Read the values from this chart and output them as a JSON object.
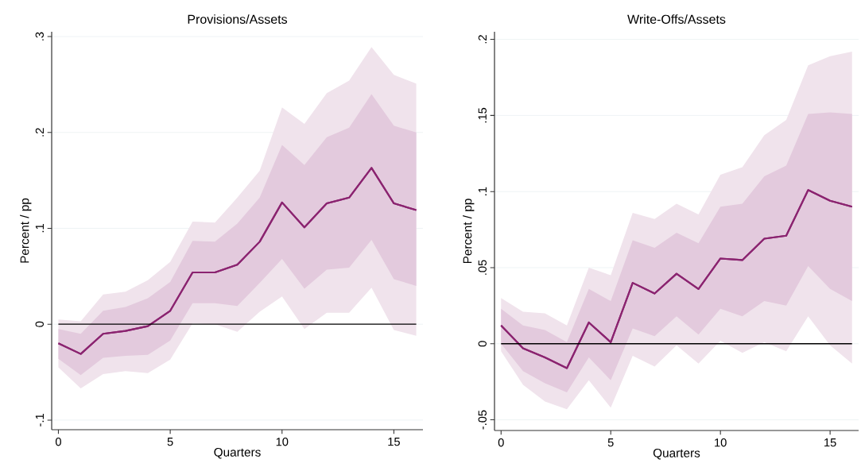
{
  "chart_data": [
    {
      "type": "line",
      "title": "Provisions/Assets",
      "xlabel": "Quarters",
      "ylabel": "Percent / pp",
      "x": [
        0,
        1,
        2,
        3,
        4,
        5,
        6,
        7,
        8,
        9,
        10,
        11,
        12,
        13,
        14,
        15,
        16
      ],
      "series": [
        {
          "color": "#8b2470",
          "values": [
            -0.02,
            -0.031,
            -0.01,
            -0.007,
            -0.002,
            0.014,
            0.054,
            0.054,
            0.062,
            0.086,
            0.127,
            0.101,
            0.126,
            0.132,
            0.163,
            0.126,
            0.119
          ],
          "lower": [
            -0.045,
            -0.067,
            -0.052,
            -0.049,
            -0.051,
            -0.037,
            0.001,
            0.0,
            -0.008,
            0.013,
            0.029,
            -0.005,
            0.012,
            0.012,
            0.038,
            -0.006,
            -0.012
          ],
          "upper": [
            0.005,
            0.003,
            0.031,
            0.034,
            0.046,
            0.065,
            0.107,
            0.106,
            0.132,
            0.16,
            0.226,
            0.209,
            0.241,
            0.254,
            0.289,
            0.26,
            0.251
          ]
        },
        {
          "color": "#8b2470",
          "values": [
            -0.02,
            -0.031,
            -0.01,
            -0.007,
            -0.002,
            0.014,
            0.054,
            0.054,
            0.062,
            0.086,
            0.127,
            0.101,
            0.126,
            0.132,
            0.163,
            0.126,
            0.119
          ],
          "lower": [
            -0.036,
            -0.053,
            -0.035,
            -0.033,
            -0.032,
            -0.017,
            0.022,
            0.022,
            0.019,
            0.043,
            0.068,
            0.037,
            0.057,
            0.059,
            0.088,
            0.047,
            0.04
          ],
          "upper": [
            -0.005,
            -0.01,
            0.014,
            0.018,
            0.027,
            0.044,
            0.087,
            0.086,
            0.105,
            0.132,
            0.187,
            0.166,
            0.195,
            0.205,
            0.24,
            0.207,
            0.2
          ]
        }
      ],
      "xlim": [
        -0.3,
        16.3
      ],
      "ylim": [
        -0.11,
        0.305
      ],
      "xticks": [
        0,
        5,
        10,
        15
      ],
      "yticks": [
        {
          "value": -0.1,
          "label": "-.1"
        },
        0,
        {
          "value": 0.1,
          "label": ".1"
        },
        {
          "value": 0.2,
          "label": ".2"
        },
        {
          "value": 0.3,
          "label": ".3"
        }
      ],
      "grid": "y",
      "ref_lines": [
        {
          "axis": "y",
          "value": 0,
          "color": "#000000"
        }
      ]
    },
    {
      "type": "line",
      "title": "Write-Offs/Assets",
      "xlabel": "Quarters",
      "ylabel": "Percent / pp",
      "x": [
        0,
        1,
        2,
        3,
        4,
        5,
        6,
        7,
        8,
        9,
        10,
        11,
        12,
        13,
        14,
        15,
        16
      ],
      "series": [
        {
          "color": "#8b2470",
          "values": [
            0.012,
            -0.003,
            -0.009,
            -0.016,
            0.014,
            0.001,
            0.04,
            0.033,
            0.046,
            0.036,
            0.056,
            0.055,
            0.069,
            0.071,
            0.101,
            0.094,
            0.09
          ],
          "lower": [
            -0.005,
            -0.027,
            -0.038,
            -0.043,
            -0.024,
            -0.042,
            -0.008,
            -0.015,
            -0.001,
            -0.013,
            0.002,
            -0.006,
            0.001,
            -0.005,
            0.018,
            -0.001,
            -0.013
          ],
          "upper": [
            0.03,
            0.021,
            0.02,
            0.012,
            0.05,
            0.045,
            0.086,
            0.082,
            0.092,
            0.085,
            0.111,
            0.116,
            0.137,
            0.147,
            0.183,
            0.189,
            0.192
          ]
        },
        {
          "color": "#8b2470",
          "values": [
            0.012,
            -0.003,
            -0.009,
            -0.016,
            0.014,
            0.001,
            0.04,
            0.033,
            0.046,
            0.036,
            0.056,
            0.055,
            0.069,
            0.071,
            0.101,
            0.094,
            0.09
          ],
          "lower": [
            0.0,
            -0.018,
            -0.026,
            -0.032,
            -0.009,
            -0.024,
            0.01,
            0.005,
            0.018,
            0.006,
            0.023,
            0.018,
            0.028,
            0.025,
            0.051,
            0.036,
            0.028
          ],
          "upper": [
            0.023,
            0.012,
            0.009,
            0.001,
            0.036,
            0.028,
            0.068,
            0.063,
            0.073,
            0.066,
            0.09,
            0.092,
            0.11,
            0.117,
            0.151,
            0.152,
            0.151
          ]
        }
      ],
      "xlim": [
        -0.3,
        16.3
      ],
      "ylim": [
        -0.057,
        0.205
      ],
      "xticks": [
        0,
        5,
        10,
        15
      ],
      "yticks": [
        {
          "value": -0.05,
          "label": "-.05"
        },
        0,
        {
          "value": 0.05,
          "label": ".05"
        },
        {
          "value": 0.1,
          "label": ".1"
        },
        {
          "value": 0.15,
          "label": ".15"
        },
        {
          "value": 0.2,
          "label": ".2"
        }
      ],
      "grid": "y",
      "ref_lines": [
        {
          "axis": "y",
          "value": 0,
          "color": "#000000"
        }
      ]
    }
  ]
}
